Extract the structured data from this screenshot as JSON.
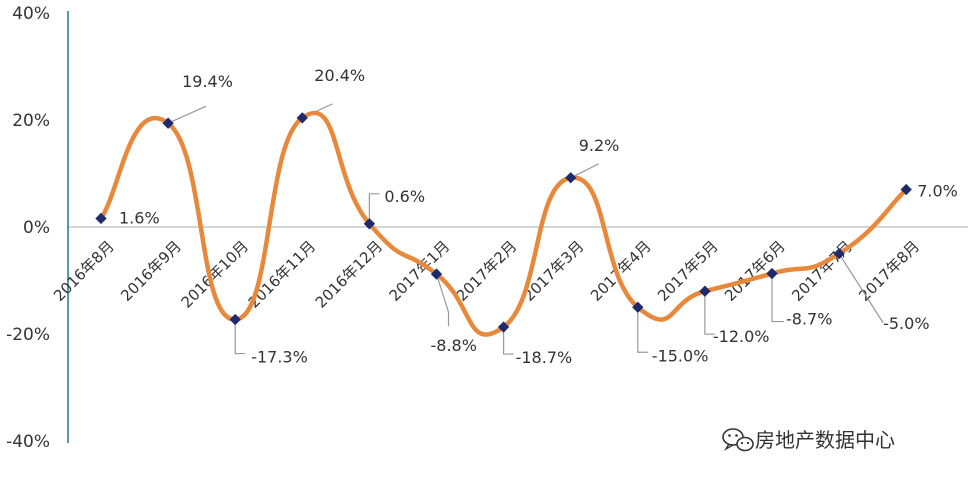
{
  "chart_data": {
    "type": "line",
    "categories": [
      "2016年8月",
      "2016年9月",
      "2016年10月",
      "2016年11月",
      "2016年12月",
      "2017年1月",
      "2017年2月",
      "2017年3月",
      "2017年4月",
      "2017年5月",
      "2017年6月",
      "2017年7月",
      "2017年8月"
    ],
    "values": [
      1.6,
      19.4,
      -17.3,
      20.4,
      0.6,
      -8.8,
      -18.7,
      9.2,
      -15.0,
      -12.0,
      -8.7,
      -5.0,
      7.0
    ],
    "value_labels": [
      "1.6%",
      "19.4%",
      "-17.3%",
      "20.4%",
      "0.6%",
      "-8.8%",
      "-18.7%",
      "9.2%",
      "-15.0%",
      "-12.0%",
      "-8.7%",
      "-5.0%",
      "7.0%"
    ],
    "y_ticks": [
      40,
      20,
      0,
      -20,
      -40
    ],
    "y_tick_labels": [
      "40%",
      "20%",
      "0%",
      "-20%",
      "-40%"
    ],
    "ylim": [
      -40,
      40
    ],
    "grid": false,
    "smooth": true,
    "line_color": "#E8883A",
    "marker_color": "#1F2A6B",
    "axis_color": "#1E7A8C",
    "zero_line_color": "#C8C8C8",
    "leader_color": "#999999"
  },
  "watermark": {
    "icon": "wechat-icon",
    "text": "房地产数据中心"
  }
}
